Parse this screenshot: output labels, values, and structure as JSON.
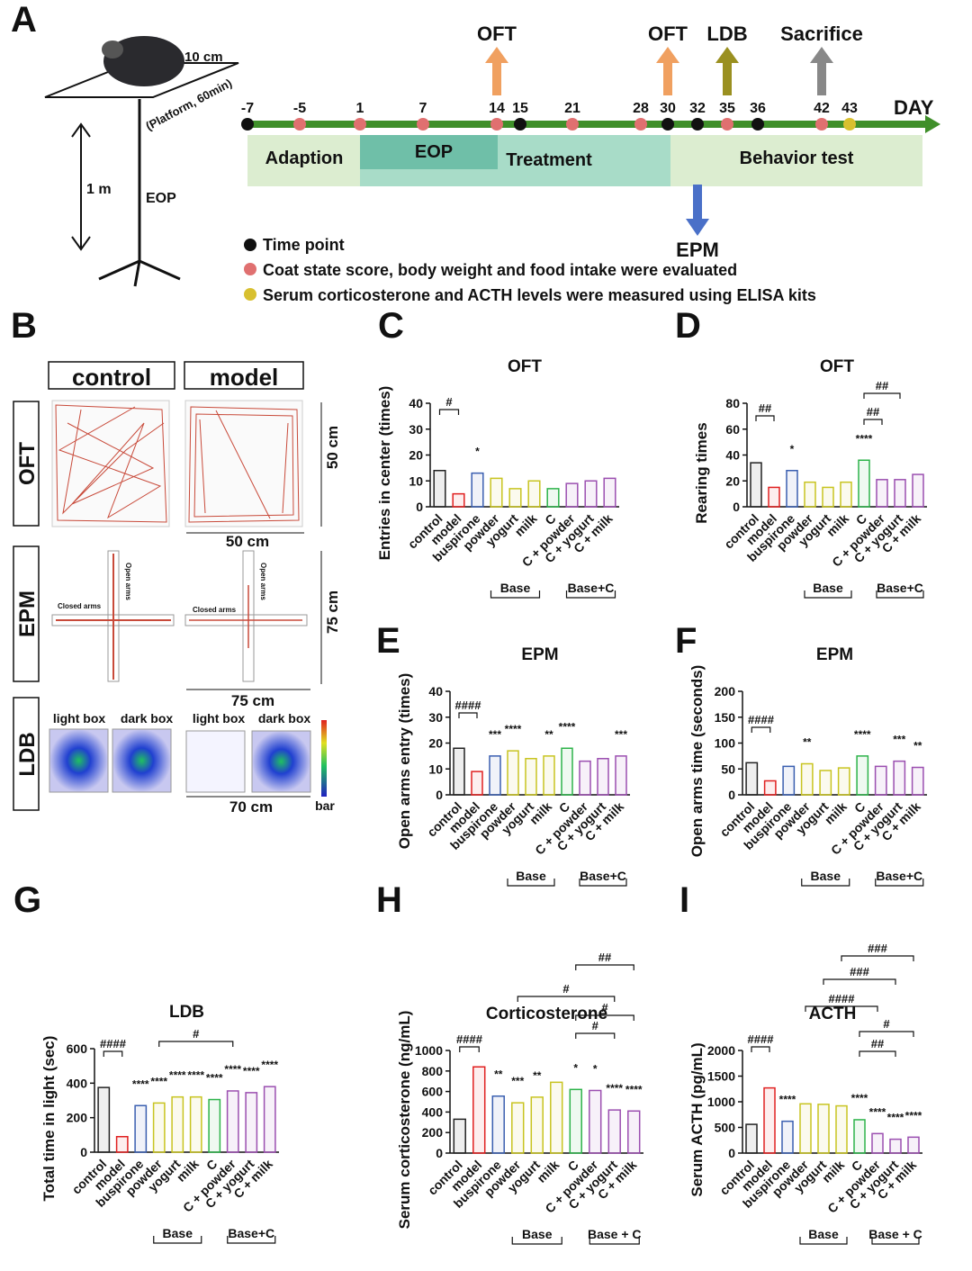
{
  "panel_a": {
    "label": "A",
    "platform_size": "10 cm",
    "platform_note": "(Platform, 60min)",
    "height": "1 m",
    "apparatus": "EOP",
    "days": [
      "-7",
      "-5",
      "1",
      "7",
      "14",
      "15",
      "21",
      "28",
      "30",
      "32",
      "35",
      "36",
      "42",
      "43"
    ],
    "day_axis": "DAY",
    "phases": [
      "Adaption",
      "EOP",
      "Treatment",
      "Behavior test"
    ],
    "tests": [
      "OFT",
      "OFT",
      "LDB",
      "Sacrifice",
      "EPM"
    ],
    "legend": [
      "Time point",
      "Coat state score, body weight and food intake were evaluated",
      "Serum corticosterone and ACTH levels were measured using ELISA kits"
    ]
  },
  "panel_b": {
    "label": "B",
    "columns": [
      "control",
      "model"
    ],
    "rows": [
      "OFT",
      "EPM",
      "LDB"
    ],
    "oft_size": "50 cm",
    "oft_width": "50 cm",
    "epm_size": "75 cm",
    "epm_width": "75 cm",
    "ldb_width": "70 cm",
    "boxes": [
      "light box",
      "dark box",
      "light box",
      "dark box"
    ],
    "closed_arms": [
      "Closed arms",
      "Closed arms"
    ],
    "open_arms": [
      "Open arms",
      "Open arms"
    ],
    "scale_label": "bar"
  },
  "chart_data": [
    {
      "panel": "C",
      "type": "bar",
      "title": "OFT",
      "y_label": "Entries in center (times)",
      "categories": [
        "control",
        "model",
        "buspirone",
        "powder",
        "yogurt",
        "milk",
        "C",
        "C + powder",
        "C + yogurt",
        "C + milk"
      ],
      "values": [
        14,
        5,
        13,
        11,
        7,
        10,
        7,
        9,
        10,
        11
      ],
      "colors": [
        "#222222",
        "#e02020",
        "#3a5fb0",
        "#c8c420",
        "#c8c420",
        "#c8c420",
        "#2db34a",
        "#9b4fb0",
        "#9b4fb0",
        "#9b4fb0"
      ],
      "ylim": [
        0,
        40
      ],
      "yticks": [
        0,
        10,
        20,
        30,
        40
      ],
      "significance": [
        null,
        null,
        "*",
        null,
        null,
        null,
        null,
        null,
        null,
        null
      ],
      "brackets": [
        "#"
      ],
      "groups": [
        "Base",
        "Base+C"
      ]
    },
    {
      "panel": "D",
      "type": "bar",
      "title": "OFT",
      "y_label": "Rearing times",
      "categories": [
        "control",
        "model",
        "buspirone",
        "powder",
        "yogurt",
        "milk",
        "C",
        "C + powder",
        "C + yogurt",
        "C + milk"
      ],
      "values": [
        34,
        15,
        28,
        19,
        15,
        19,
        36,
        21,
        21,
        25
      ],
      "colors": [
        "#222222",
        "#e02020",
        "#3a5fb0",
        "#c8c420",
        "#c8c420",
        "#c8c420",
        "#2db34a",
        "#9b4fb0",
        "#9b4fb0",
        "#9b4fb0"
      ],
      "ylim": [
        0,
        80
      ],
      "yticks": [
        0,
        20,
        40,
        60,
        80
      ],
      "significance": [
        null,
        null,
        "*",
        null,
        null,
        null,
        "****",
        null,
        null,
        null
      ],
      "brackets": [
        "##",
        "##",
        "##"
      ],
      "groups": [
        "Base",
        "Base+C"
      ]
    },
    {
      "panel": "E",
      "type": "bar",
      "title": "EPM",
      "y_label": "Open arms entry (times)",
      "categories": [
        "control",
        "model",
        "buspirone",
        "powder",
        "yogurt",
        "milk",
        "C",
        "C + powder",
        "C + yogurt",
        "C + milk"
      ],
      "values": [
        18,
        9,
        15,
        17,
        14,
        15,
        18,
        13,
        14,
        15
      ],
      "colors": [
        "#222222",
        "#e02020",
        "#3a5fb0",
        "#c8c420",
        "#c8c420",
        "#c8c420",
        "#2db34a",
        "#9b4fb0",
        "#9b4fb0",
        "#9b4fb0"
      ],
      "ylim": [
        0,
        40
      ],
      "yticks": [
        0,
        10,
        20,
        30,
        40
      ],
      "significance": [
        null,
        null,
        "***",
        "****",
        null,
        "**",
        "****",
        null,
        null,
        "***"
      ],
      "brackets": [
        "####"
      ],
      "groups": [
        "Base",
        "Base+C"
      ]
    },
    {
      "panel": "F",
      "type": "bar",
      "title": "EPM",
      "y_label": "Open arms time (seconds)",
      "categories": [
        "control",
        "model",
        "buspirone",
        "powder",
        "yogurt",
        "milk",
        "C",
        "C + powder",
        "C + yogurt",
        "C + milk"
      ],
      "values": [
        62,
        27,
        55,
        60,
        47,
        52,
        75,
        55,
        65,
        53
      ],
      "colors": [
        "#222222",
        "#e02020",
        "#3a5fb0",
        "#c8c420",
        "#c8c420",
        "#c8c420",
        "#2db34a",
        "#9b4fb0",
        "#9b4fb0",
        "#9b4fb0"
      ],
      "ylim": [
        0,
        200
      ],
      "yticks": [
        0,
        50,
        100,
        150,
        200
      ],
      "significance": [
        null,
        null,
        null,
        "**",
        null,
        null,
        "****",
        null,
        "***",
        "**"
      ],
      "brackets": [
        "####"
      ],
      "groups": [
        "Base",
        "Base+C"
      ]
    },
    {
      "panel": "G",
      "type": "bar",
      "title": "LDB",
      "y_label": "Total time in light (sec)",
      "categories": [
        "control",
        "model",
        "buspirone",
        "powder",
        "yogurt",
        "milk",
        "C",
        "C + powder",
        "C + yogurt",
        "C + milk"
      ],
      "values": [
        375,
        90,
        270,
        285,
        320,
        320,
        305,
        355,
        345,
        380
      ],
      "colors": [
        "#222222",
        "#e02020",
        "#3a5fb0",
        "#c8c420",
        "#c8c420",
        "#c8c420",
        "#2db34a",
        "#9b4fb0",
        "#9b4fb0",
        "#9b4fb0"
      ],
      "ylim": [
        0,
        600
      ],
      "yticks": [
        0,
        200,
        400,
        600
      ],
      "significance": [
        null,
        null,
        "****",
        "****",
        "****",
        "****",
        "****",
        "****",
        "****",
        "****"
      ],
      "brackets": [
        "####",
        "#"
      ],
      "groups": [
        "Base",
        "Base+C"
      ]
    },
    {
      "panel": "H",
      "type": "bar",
      "title": "Corticosterone",
      "y_label": "Serum corticosterone (ng/mL)",
      "categories": [
        "control",
        "model",
        "buspirone",
        "powder",
        "yogurt",
        "milk",
        "C",
        "C + powder",
        "C + yogurt",
        "C + milk"
      ],
      "values": [
        330,
        840,
        555,
        490,
        545,
        690,
        620,
        610,
        420,
        410
      ],
      "colors": [
        "#222222",
        "#e02020",
        "#3a5fb0",
        "#c8c420",
        "#c8c420",
        "#c8c420",
        "#2db34a",
        "#9b4fb0",
        "#9b4fb0",
        "#9b4fb0"
      ],
      "ylim": [
        0,
        1000
      ],
      "yticks": [
        0,
        200,
        400,
        600,
        800,
        1000
      ],
      "significance": [
        null,
        null,
        "**",
        "***",
        "**",
        null,
        "*",
        "*",
        "****",
        "****"
      ],
      "brackets": [
        "####",
        "##",
        "#",
        "#",
        "#"
      ],
      "groups": [
        "Base",
        "Base + C"
      ]
    },
    {
      "panel": "I",
      "type": "bar",
      "title": "ACTH",
      "y_label": "Serum ACTH (pg/mL)",
      "categories": [
        "control",
        "model",
        "buspirone",
        "powder",
        "yogurt",
        "milk",
        "C",
        "C + powder",
        "C + yogurt",
        "C + milk"
      ],
      "values": [
        560,
        1270,
        620,
        960,
        950,
        920,
        650,
        380,
        270,
        310
      ],
      "colors": [
        "#222222",
        "#e02020",
        "#3a5fb0",
        "#c8c420",
        "#c8c420",
        "#c8c420",
        "#2db34a",
        "#9b4fb0",
        "#9b4fb0",
        "#9b4fb0"
      ],
      "ylim": [
        0,
        2000
      ],
      "yticks": [
        0,
        500,
        1000,
        1500,
        2000
      ],
      "significance": [
        null,
        null,
        "****",
        null,
        null,
        null,
        "****",
        "****",
        "****",
        "****"
      ],
      "brackets": [
        "####",
        "#",
        "##",
        "####",
        "###",
        "###"
      ],
      "groups": [
        "Base",
        "Base + C"
      ]
    }
  ]
}
